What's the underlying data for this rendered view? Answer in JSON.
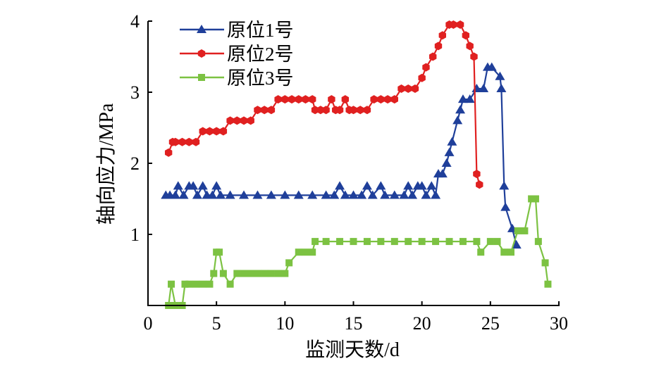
{
  "chart_data": {
    "type": "line",
    "xlabel": "监测天数/d",
    "ylabel": "轴向应力/MPa",
    "xlim": [
      0,
      30
    ],
    "ylim": [
      0,
      4
    ],
    "xticks": [
      "0",
      "5",
      "10",
      "15",
      "20",
      "25",
      "30"
    ],
    "yticks": [
      "1",
      "2",
      "3",
      "4"
    ],
    "grid": false,
    "legend_position": "top-left",
    "series": [
      {
        "name": "原位1号",
        "color": "#1f3f9a",
        "marker": "triangle",
        "points": [
          [
            1.3,
            1.55
          ],
          [
            1.6,
            1.55
          ],
          [
            2.0,
            1.55
          ],
          [
            2.2,
            1.68
          ],
          [
            2.6,
            1.55
          ],
          [
            3.0,
            1.68
          ],
          [
            3.3,
            1.68
          ],
          [
            3.6,
            1.55
          ],
          [
            4.0,
            1.68
          ],
          [
            4.3,
            1.55
          ],
          [
            4.7,
            1.55
          ],
          [
            5.0,
            1.68
          ],
          [
            5.3,
            1.55
          ],
          [
            6.0,
            1.55
          ],
          [
            7.0,
            1.55
          ],
          [
            8.0,
            1.55
          ],
          [
            9.0,
            1.55
          ],
          [
            10.0,
            1.55
          ],
          [
            11.0,
            1.55
          ],
          [
            12.0,
            1.55
          ],
          [
            13.0,
            1.55
          ],
          [
            13.6,
            1.55
          ],
          [
            14.0,
            1.68
          ],
          [
            14.4,
            1.55
          ],
          [
            15.0,
            1.55
          ],
          [
            15.6,
            1.55
          ],
          [
            16.0,
            1.68
          ],
          [
            16.4,
            1.55
          ],
          [
            17.0,
            1.68
          ],
          [
            17.3,
            1.55
          ],
          [
            18.0,
            1.55
          ],
          [
            18.7,
            1.55
          ],
          [
            19.0,
            1.68
          ],
          [
            19.3,
            1.55
          ],
          [
            19.7,
            1.68
          ],
          [
            20.0,
            1.68
          ],
          [
            20.3,
            1.55
          ],
          [
            20.7,
            1.68
          ],
          [
            21.0,
            1.55
          ],
          [
            21.2,
            1.85
          ],
          [
            21.5,
            1.85
          ],
          [
            21.8,
            2.0
          ],
          [
            22.0,
            2.15
          ],
          [
            22.2,
            2.3
          ],
          [
            22.6,
            2.6
          ],
          [
            22.8,
            2.75
          ],
          [
            23.0,
            2.9
          ],
          [
            23.5,
            2.9
          ],
          [
            24.0,
            3.05
          ],
          [
            24.5,
            3.05
          ],
          [
            24.8,
            3.35
          ],
          [
            25.1,
            3.35
          ],
          [
            25.7,
            3.22
          ],
          [
            25.8,
            3.05
          ],
          [
            26.0,
            1.68
          ],
          [
            26.1,
            1.38
          ],
          [
            26.6,
            1.08
          ],
          [
            26.9,
            0.85
          ]
        ]
      },
      {
        "name": "原位2号",
        "color": "#e02020",
        "marker": "hexagon",
        "points": [
          [
            1.5,
            2.15
          ],
          [
            1.8,
            2.3
          ],
          [
            2.0,
            2.3
          ],
          [
            2.5,
            2.3
          ],
          [
            3.0,
            2.3
          ],
          [
            3.5,
            2.3
          ],
          [
            4.0,
            2.45
          ],
          [
            4.5,
            2.45
          ],
          [
            5.0,
            2.45
          ],
          [
            5.5,
            2.45
          ],
          [
            6.0,
            2.6
          ],
          [
            6.5,
            2.6
          ],
          [
            7.0,
            2.6
          ],
          [
            7.5,
            2.6
          ],
          [
            8.0,
            2.75
          ],
          [
            8.5,
            2.75
          ],
          [
            9.0,
            2.75
          ],
          [
            9.5,
            2.9
          ],
          [
            10.0,
            2.9
          ],
          [
            10.5,
            2.9
          ],
          [
            11.0,
            2.9
          ],
          [
            11.5,
            2.9
          ],
          [
            12.0,
            2.9
          ],
          [
            12.2,
            2.75
          ],
          [
            12.6,
            2.75
          ],
          [
            13.0,
            2.75
          ],
          [
            13.4,
            2.9
          ],
          [
            13.7,
            2.75
          ],
          [
            14.0,
            2.75
          ],
          [
            14.4,
            2.9
          ],
          [
            14.7,
            2.75
          ],
          [
            15.0,
            2.75
          ],
          [
            15.5,
            2.75
          ],
          [
            16.0,
            2.75
          ],
          [
            16.5,
            2.9
          ],
          [
            17.0,
            2.9
          ],
          [
            17.5,
            2.9
          ],
          [
            18.0,
            2.9
          ],
          [
            18.5,
            3.05
          ],
          [
            19.0,
            3.05
          ],
          [
            19.5,
            3.05
          ],
          [
            20.0,
            3.2
          ],
          [
            20.3,
            3.35
          ],
          [
            20.8,
            3.5
          ],
          [
            21.2,
            3.65
          ],
          [
            21.5,
            3.8
          ],
          [
            22.0,
            3.95
          ],
          [
            22.3,
            3.95
          ],
          [
            22.8,
            3.95
          ],
          [
            23.2,
            3.8
          ],
          [
            23.5,
            3.65
          ],
          [
            23.8,
            3.5
          ],
          [
            24.0,
            1.85
          ],
          [
            24.2,
            1.7
          ]
        ]
      },
      {
        "name": "原位3号",
        "color": "#7cc242",
        "marker": "square",
        "points": [
          [
            1.5,
            0.0
          ],
          [
            1.7,
            0.3
          ],
          [
            2.0,
            0.0
          ],
          [
            2.5,
            0.0
          ],
          [
            2.7,
            0.3
          ],
          [
            3.0,
            0.3
          ],
          [
            3.5,
            0.3
          ],
          [
            4.0,
            0.3
          ],
          [
            4.5,
            0.3
          ],
          [
            4.8,
            0.45
          ],
          [
            5.0,
            0.75
          ],
          [
            5.2,
            0.75
          ],
          [
            5.5,
            0.45
          ],
          [
            6.0,
            0.3
          ],
          [
            6.5,
            0.45
          ],
          [
            7.0,
            0.45
          ],
          [
            7.5,
            0.45
          ],
          [
            8.0,
            0.45
          ],
          [
            8.5,
            0.45
          ],
          [
            9.0,
            0.45
          ],
          [
            9.5,
            0.45
          ],
          [
            10.0,
            0.45
          ],
          [
            10.3,
            0.6
          ],
          [
            11.0,
            0.75
          ],
          [
            11.5,
            0.75
          ],
          [
            12.0,
            0.75
          ],
          [
            12.2,
            0.9
          ],
          [
            13.0,
            0.9
          ],
          [
            14.0,
            0.9
          ],
          [
            15.0,
            0.9
          ],
          [
            16.0,
            0.9
          ],
          [
            17.0,
            0.9
          ],
          [
            18.0,
            0.9
          ],
          [
            19.0,
            0.9
          ],
          [
            20.0,
            0.9
          ],
          [
            21.0,
            0.9
          ],
          [
            22.0,
            0.9
          ],
          [
            23.0,
            0.9
          ],
          [
            24.0,
            0.9
          ],
          [
            24.3,
            0.75
          ],
          [
            25.0,
            0.9
          ],
          [
            25.5,
            0.9
          ],
          [
            26.0,
            0.75
          ],
          [
            26.5,
            0.75
          ],
          [
            27.0,
            1.05
          ],
          [
            27.5,
            1.05
          ],
          [
            28.0,
            1.5
          ],
          [
            28.3,
            1.5
          ],
          [
            28.5,
            0.9
          ],
          [
            29.0,
            0.6
          ],
          [
            29.2,
            0.3
          ]
        ]
      }
    ]
  }
}
